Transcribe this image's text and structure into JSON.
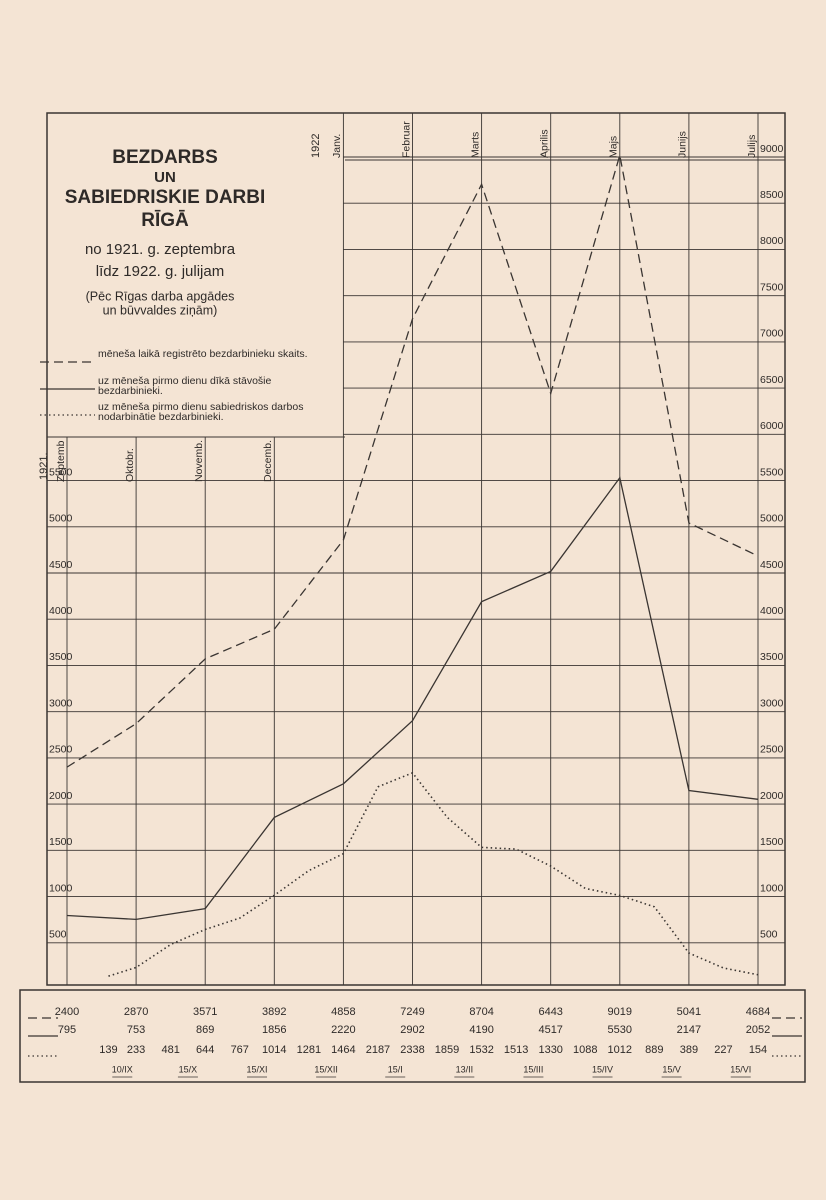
{
  "chart_data": {
    "type": "line",
    "title": [
      "BEZDARBS",
      "UN",
      "SABIEDRISKIE DARBI",
      "RĪGĀ"
    ],
    "subtitle": [
      "no 1921. g. zeptembra",
      "līdz 1922. g. julijam"
    ],
    "source_note": [
      "(Pēc Rīgas darba apgādes",
      "un būvvaldes ziņām)"
    ],
    "year_start": "1921.",
    "year_next": "1922",
    "categories": [
      "Zeptemb",
      "Oktobr.",
      "Novemb.",
      "Decemb.",
      "Janv.",
      "Februar",
      "Marts",
      "Aprilis",
      "Majs",
      "Junijs",
      "Julijs"
    ],
    "xlim": [
      0,
      10
    ],
    "ylim": [
      0,
      9000
    ],
    "yticks": [
      500,
      1000,
      1500,
      2000,
      2500,
      3000,
      3500,
      4000,
      4500,
      5000,
      5500,
      6000,
      6500,
      7000,
      7500,
      8000,
      8500,
      9000
    ],
    "grid": true,
    "series": [
      {
        "name": "mēneša laikā registrēto bezdarbinieku skaits.",
        "color": "#3a3532",
        "line_style": "dashed",
        "values": [
          2400,
          2870,
          3571,
          3892,
          4858,
          7249,
          8704,
          6443,
          9019,
          5041,
          4684
        ]
      },
      {
        "name": "uz mēneša pirmo dienu dīkā stāvošie bezdarbinieki.",
        "color": "#3a3532",
        "line_style": "solid",
        "values": [
          795,
          753,
          869,
          1856,
          2220,
          2902,
          4190,
          4517,
          5530,
          2147,
          2052
        ]
      },
      {
        "name": "uz mēneša pirmo dienu sabiedriskos darbos nodarbinātie bezdarbinieki.",
        "color": "#3a3532",
        "line_style": "dotted",
        "x": [
          0.6,
          1,
          1.5,
          2,
          2.5,
          3,
          3.5,
          4,
          4.5,
          5,
          5.5,
          6,
          6.5,
          7,
          7.5,
          8,
          8.5,
          9,
          9.5,
          10
        ],
        "values": [
          139,
          233,
          481,
          644,
          767,
          1014,
          1281,
          1464,
          2187,
          2338,
          1859,
          1532,
          1513,
          1330,
          1088,
          1012,
          889,
          389,
          227,
          154
        ],
        "date_labels": [
          "10/IX",
          null,
          "15/X",
          null,
          "15/XI",
          null,
          "15/XII",
          null,
          "15/I",
          null,
          "13/II",
          null,
          "15/III",
          null,
          "15/IV",
          null,
          "15/V",
          null,
          "15/VI",
          null
        ]
      }
    ]
  }
}
